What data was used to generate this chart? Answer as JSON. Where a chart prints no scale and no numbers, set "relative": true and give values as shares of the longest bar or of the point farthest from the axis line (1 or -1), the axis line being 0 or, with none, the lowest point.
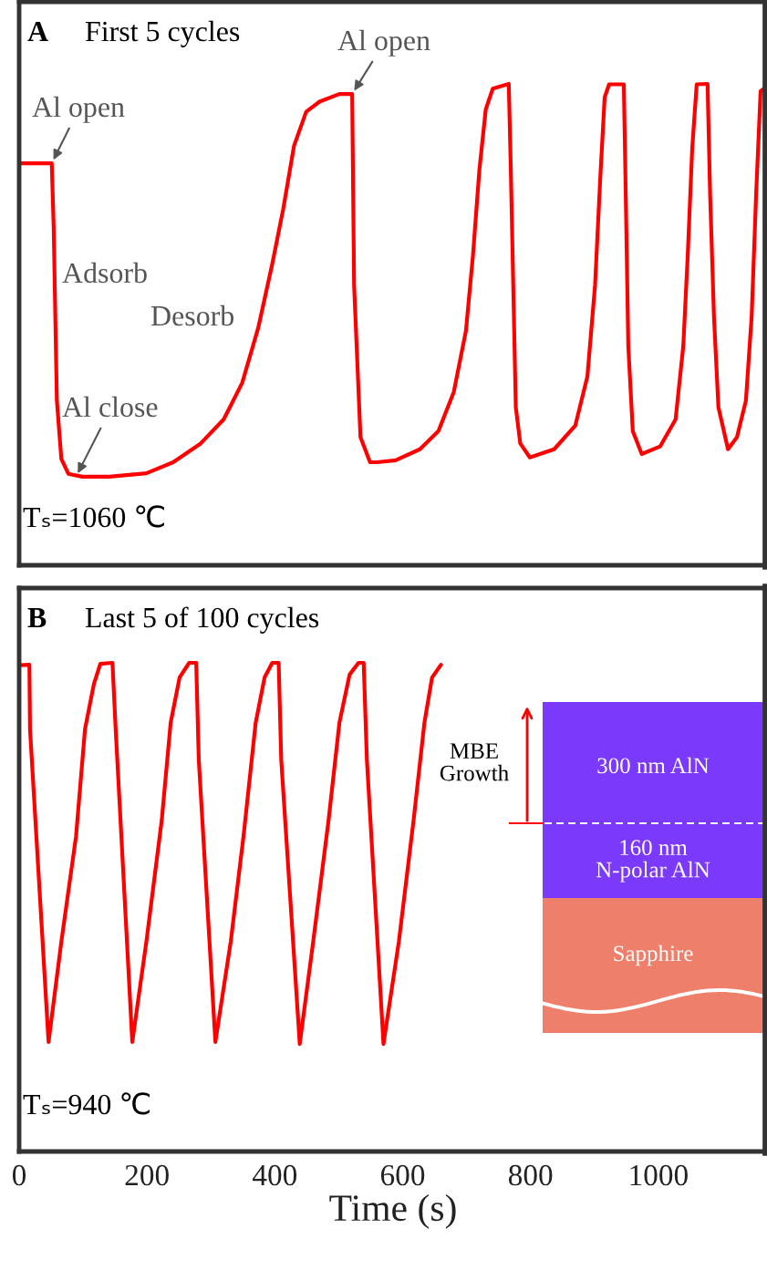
{
  "chart_data": [
    {
      "type": "line",
      "title": "First 5 cycles",
      "relative": true,
      "xlim": [
        0,
        1170
      ],
      "xticks": [
        0,
        200,
        400,
        600,
        800,
        1000
      ],
      "tick_labels": false,
      "grid": false,
      "legend": false,
      "series": [
        {
          "color": "#ff0000",
          "x": [
            0,
            51,
            54,
            59,
            66,
            77,
            99,
            141,
            199,
            241,
            284,
            320,
            349,
            374,
            396,
            413,
            430,
            449,
            470,
            501,
            521,
            524,
            534,
            549,
            560,
            589,
            627,
            656,
            680,
            699,
            710,
            720,
            730,
            741,
            766,
            769,
            773,
            777,
            784,
            799,
            837,
            870,
            889,
            901,
            909,
            916,
            923,
            946,
            949,
            953,
            960,
            974,
            1003,
            1027,
            1039,
            1046,
            1053,
            1060,
            1077,
            1081,
            1087,
            1094,
            1109,
            1123,
            1137,
            1146,
            1153,
            1160,
            1170
          ],
          "values": [
            0.835,
            0.835,
            0.703,
            0.342,
            0.221,
            0.19,
            0.184,
            0.184,
            0.191,
            0.214,
            0.253,
            0.303,
            0.379,
            0.493,
            0.626,
            0.739,
            0.871,
            0.942,
            0.963,
            0.979,
            0.979,
            0.582,
            0.266,
            0.214,
            0.214,
            0.218,
            0.241,
            0.279,
            0.36,
            0.487,
            0.644,
            0.821,
            0.947,
            0.99,
            1.0,
            0.834,
            0.582,
            0.328,
            0.253,
            0.224,
            0.241,
            0.29,
            0.392,
            0.582,
            0.801,
            0.972,
            0.999,
            0.999,
            0.771,
            0.455,
            0.279,
            0.231,
            0.247,
            0.303,
            0.455,
            0.644,
            0.866,
            0.999,
            1.0,
            0.771,
            0.517,
            0.328,
            0.241,
            0.266,
            0.342,
            0.517,
            0.771,
            0.985,
            0.995
          ]
        }
      ],
      "annotations": [
        "A",
        "Adsorb",
        "Desorb",
        "Tₛ=1060 ℃",
        {
          "text": "Al open",
          "x": 51,
          "y": 0.835
        },
        {
          "text": "Al open",
          "x": 521,
          "y": 0.979
        },
        {
          "text": "Al close",
          "x": 89,
          "y": 0.184
        }
      ]
    },
    {
      "type": "line",
      "title": "Last 5 of 100 cycles",
      "xlabel": "Time (s)",
      "relative": true,
      "xlim": [
        0,
        1170
      ],
      "xticks": [
        0,
        200,
        400,
        600,
        800,
        1000
      ],
      "tick_labels": "x",
      "grid": false,
      "legend": false,
      "series": [
        {
          "color": "#ff0000",
          "x": [
            0,
            16,
            17,
            46,
            66,
            89,
            103,
            117,
            127,
            146,
            151,
            177,
            199,
            223,
            237,
            251,
            266,
            277,
            281,
            307,
            331,
            351,
            370,
            384,
            396,
            406,
            410,
            439,
            460,
            484,
            501,
            517,
            531,
            539,
            544,
            570,
            594,
            617,
            634,
            646,
            660
          ],
          "values": [
            0.995,
            0.996,
            0.864,
            0.224,
            0.429,
            0.645,
            0.864,
            0.957,
            0.998,
            1.0,
            0.864,
            0.224,
            0.429,
            0.677,
            0.877,
            0.97,
            1.0,
            1.0,
            0.802,
            0.224,
            0.429,
            0.645,
            0.877,
            0.97,
            1.0,
            1.0,
            0.802,
            0.22,
            0.429,
            0.677,
            0.877,
            0.976,
            1.0,
            1.0,
            0.802,
            0.22,
            0.429,
            0.677,
            0.877,
            0.97,
            0.996
          ]
        }
      ],
      "annotations": [
        "B",
        "Tₛ=940 ℃",
        "MBE\nGrowth",
        "300 nm AlN",
        "160 nm\nN-polar AlN",
        "Sapphire"
      ]
    }
  ]
}
